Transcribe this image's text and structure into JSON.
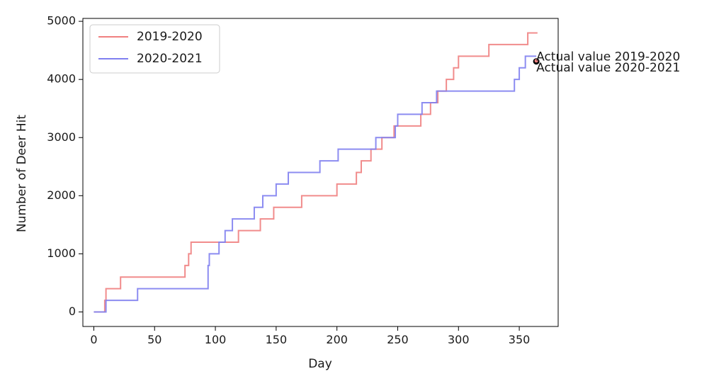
{
  "chart_data": {
    "type": "line",
    "title": "",
    "xlabel": "Day",
    "ylabel": "Number of Deer Hit",
    "xlim": [
      -9,
      382
    ],
    "ylim": [
      -250,
      5050
    ],
    "xticks": [
      0,
      50,
      100,
      150,
      200,
      250,
      300,
      350
    ],
    "yticks": [
      0,
      1000,
      2000,
      3000,
      4000,
      5000
    ],
    "grid": false,
    "legend_position": "upper left",
    "series": [
      {
        "name": "2019-2020",
        "color": "#f08080",
        "step": true,
        "x": [
          0,
          8,
          9,
          10,
          22,
          65,
          75,
          78,
          80,
          118,
          119,
          135,
          137,
          148,
          171,
          200,
          216,
          220,
          225,
          228,
          233,
          237,
          244,
          247,
          250,
          264,
          269,
          275,
          277,
          281,
          283,
          288,
          290,
          294,
          296,
          300,
          325,
          357,
          365
        ],
        "y": [
          0,
          0,
          200,
          400,
          600,
          600,
          800,
          1000,
          1200,
          1200,
          1400,
          1400,
          1600,
          1800,
          2000,
          2200,
          2400,
          2600,
          2600,
          2800,
          2800,
          3000,
          3000,
          3200,
          3200,
          3200,
          3400,
          3400,
          3600,
          3600,
          3800,
          3800,
          4000,
          4000,
          4200,
          4400,
          4600,
          4800,
          4800
        ]
      },
      {
        "name": "2020-2021",
        "color": "#8080f0",
        "step": true,
        "x": [
          0,
          9,
          10,
          36,
          92,
          94,
          95,
          103,
          108,
          110,
          114,
          117,
          132,
          135,
          139,
          140,
          144,
          150,
          160,
          186,
          201,
          232,
          240,
          248,
          250,
          266,
          270,
          277,
          282,
          345,
          346,
          348,
          350,
          355,
          362,
          364
        ],
        "y": [
          0,
          0,
          200,
          400,
          400,
          800,
          1000,
          1200,
          1400,
          1400,
          1600,
          1600,
          1800,
          1800,
          2000,
          2000,
          2000,
          2200,
          2400,
          2600,
          2800,
          3000,
          3000,
          3200,
          3400,
          3400,
          3600,
          3600,
          3800,
          3800,
          4000,
          4000,
          4200,
          4400,
          4400,
          4400
        ]
      }
    ],
    "points": [
      {
        "x": 364,
        "y": 4310,
        "color": "#000000"
      },
      {
        "x": 364,
        "y": 4320,
        "color": "#f08080"
      }
    ],
    "annotations": [
      {
        "text": "Actual value 2019-2020",
        "x": 364,
        "y": 4310
      },
      {
        "text": "Actual value 2020-2021",
        "x": 364,
        "y": 4320
      }
    ]
  }
}
